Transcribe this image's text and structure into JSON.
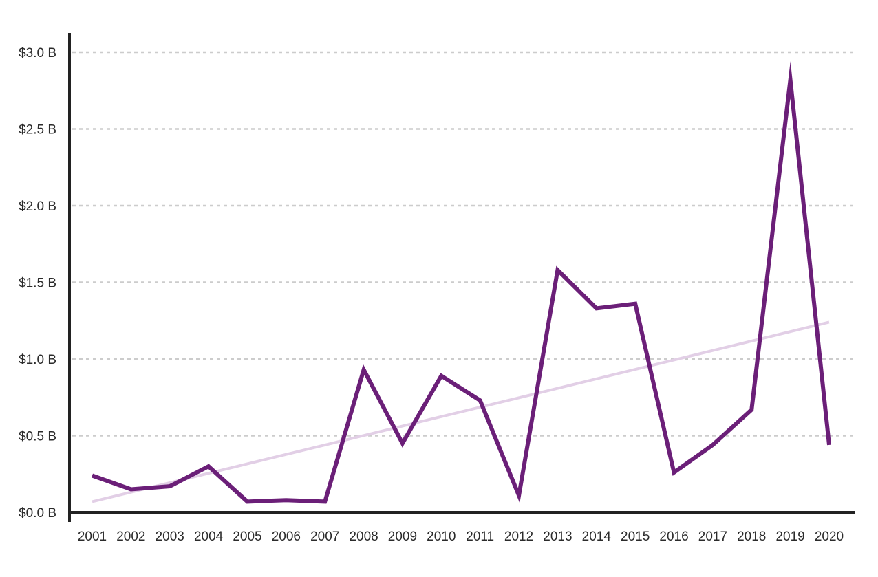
{
  "chart_data": {
    "type": "line",
    "title": "",
    "xlabel": "",
    "ylabel": "",
    "ylim": [
      0,
      3
    ],
    "grid": true,
    "y_ticks": [
      {
        "value": 0.0,
        "label": "$0.0 B"
      },
      {
        "value": 0.5,
        "label": "$0.5 B"
      },
      {
        "value": 1.0,
        "label": "$1.0 B"
      },
      {
        "value": 1.5,
        "label": "$1.5 B"
      },
      {
        "value": 2.0,
        "label": "$2.0 B"
      },
      {
        "value": 2.5,
        "label": "$2.5 B"
      },
      {
        "value": 3.0,
        "label": "$3.0 B"
      }
    ],
    "categories": [
      "2001",
      "2002",
      "2003",
      "2004",
      "2005",
      "2006",
      "2007",
      "2008",
      "2009",
      "2010",
      "2011",
      "2012",
      "2013",
      "2014",
      "2015",
      "2016",
      "2017",
      "2018",
      "2019",
      "2020"
    ],
    "series": [
      {
        "values": [
          0.24,
          0.15,
          0.17,
          0.3,
          0.07,
          0.08,
          0.07,
          0.93,
          0.45,
          0.89,
          0.73,
          0.11,
          1.58,
          1.33,
          1.36,
          0.26,
          0.44,
          0.67,
          2.82,
          0.44
        ],
        "color": "#6b1f78"
      }
    ],
    "trendline": {
      "start": 0.07,
      "end": 1.24,
      "color": "#e2cfe6"
    },
    "colors": {
      "axis": "#222222",
      "grid": "#cccccc",
      "text": "#2b2b2b"
    }
  }
}
